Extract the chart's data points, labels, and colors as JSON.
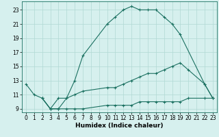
{
  "xlabel": "Humidex (Indice chaleur)",
  "bg_color": "#d6f0ee",
  "line_color": "#1a7060",
  "grid_color": "#b0d8d4",
  "series": [
    {
      "x": [
        0,
        1,
        2,
        3,
        4,
        5,
        6,
        7,
        10,
        11,
        12,
        13,
        14,
        15,
        16,
        17,
        18,
        19,
        22,
        23
      ],
      "y": [
        12.5,
        11.0,
        10.5,
        9.0,
        9.0,
        10.5,
        13.0,
        16.5,
        21.0,
        22.0,
        23.0,
        23.5,
        23.0,
        23.0,
        23.0,
        22.0,
        21.0,
        19.5,
        12.5,
        10.5
      ]
    },
    {
      "x": [
        2,
        3,
        4,
        5,
        6,
        7,
        10,
        11,
        12,
        13,
        14,
        15,
        16,
        17,
        18,
        19,
        20,
        22,
        23
      ],
      "y": [
        10.5,
        9.0,
        10.5,
        10.5,
        11.0,
        11.5,
        12.0,
        12.0,
        12.5,
        13.0,
        13.5,
        14.0,
        14.0,
        14.5,
        15.0,
        15.5,
        14.5,
        12.5,
        10.5
      ]
    },
    {
      "x": [
        2,
        3,
        4,
        5,
        6,
        7,
        10,
        11,
        12,
        13,
        14,
        15,
        16,
        17,
        18,
        19,
        20,
        22,
        23
      ],
      "y": [
        10.5,
        9.0,
        9.0,
        9.0,
        9.0,
        9.0,
        9.5,
        9.5,
        9.5,
        9.5,
        10.0,
        10.0,
        10.0,
        10.0,
        10.0,
        10.0,
        10.5,
        10.5,
        10.5
      ]
    }
  ],
  "xlim": [
    -0.5,
    23.5
  ],
  "ylim": [
    8.5,
    24.2
  ],
  "yticks": [
    9,
    11,
    13,
    15,
    17,
    19,
    21,
    23
  ],
  "xticks": [
    0,
    1,
    2,
    3,
    4,
    5,
    6,
    7,
    8,
    9,
    10,
    11,
    12,
    13,
    14,
    15,
    16,
    17,
    18,
    19,
    20,
    21,
    22,
    23
  ],
  "tick_fontsize": 5.5,
  "xlabel_fontsize": 6.5
}
